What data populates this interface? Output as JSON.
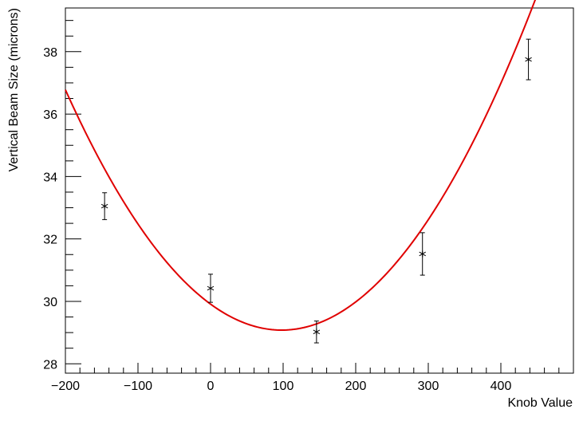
{
  "chart_data": {
    "type": "scatter",
    "title": "",
    "xlabel": "Knob Value",
    "ylabel": "Vertical Beam Size (microns)",
    "xlim": [
      -200,
      500
    ],
    "ylim": [
      27.7,
      39.4
    ],
    "x_ticks": [
      -200,
      -100,
      0,
      100,
      200,
      300,
      400
    ],
    "x_tick_labels": [
      "−200",
      "−100",
      "0",
      "100",
      "200",
      "300",
      "400"
    ],
    "y_ticks": [
      28,
      30,
      32,
      34,
      36,
      38
    ],
    "y_tick_labels": [
      "28",
      "30",
      "32",
      "34",
      "36",
      "38"
    ],
    "grid": false,
    "legend": "none",
    "points": [
      {
        "x": -146,
        "y": 33.05,
        "err": 0.43
      },
      {
        "x": 0,
        "y": 30.42,
        "err": 0.45
      },
      {
        "x": 146,
        "y": 29.02,
        "err": 0.35
      },
      {
        "x": 292,
        "y": 31.52,
        "err": 0.68
      },
      {
        "x": 438,
        "y": 37.75,
        "err": 0.65
      }
    ],
    "fit": {
      "type": "quadratic",
      "coeffs": [
        29.08,
        8.67e-05,
        98
      ],
      "x_range": [
        -200,
        477
      ],
      "color": "#e00000"
    },
    "marker": "asterisk",
    "marker_color": "#000000"
  }
}
